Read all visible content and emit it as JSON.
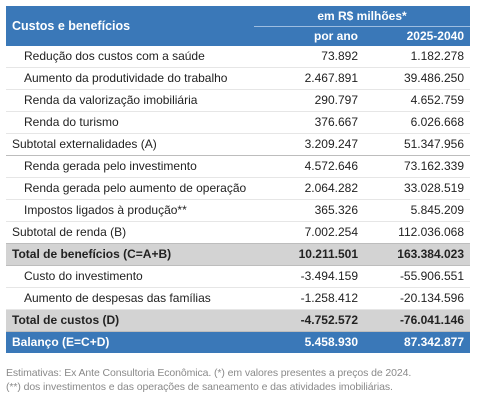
{
  "header": {
    "label": "Custos e benefícios",
    "group": "em R$ milhões*",
    "col1": "por ano",
    "col2": "2025-2040"
  },
  "rows": [
    {
      "type": "item",
      "label": "Redução dos custos com a saúde",
      "a": "73.892",
      "b": "1.182.278"
    },
    {
      "type": "item",
      "label": "Aumento da produtividade do trabalho",
      "a": "2.467.891",
      "b": "39.486.250"
    },
    {
      "type": "item",
      "label": "Renda da valorização imobiliária",
      "a": "290.797",
      "b": "4.652.759"
    },
    {
      "type": "item",
      "label": "Renda do turismo",
      "a": "376.667",
      "b": "6.026.668"
    },
    {
      "type": "subtotal",
      "label": "Subtotal externalidades (A)",
      "a": "3.209.247",
      "b": "51.347.956"
    },
    {
      "type": "item",
      "label": "Renda gerada pelo investimento",
      "a": "4.572.646",
      "b": "73.162.339"
    },
    {
      "type": "item",
      "label": "Renda gerada pelo aumento de operação",
      "a": "2.064.282",
      "b": "33.028.519"
    },
    {
      "type": "item",
      "label": "Impostos ligados à produção**",
      "a": "365.326",
      "b": "5.845.209"
    },
    {
      "type": "subtotal",
      "label": "Subtotal de renda (B)",
      "a": "7.002.254",
      "b": "112.036.068"
    },
    {
      "type": "total",
      "label": "Total de benefícios (C=A+B)",
      "a": "10.211.501",
      "b": "163.384.023"
    },
    {
      "type": "item",
      "label": "Custo do investimento",
      "a": "-3.494.159",
      "b": "-55.906.551"
    },
    {
      "type": "item",
      "label": "Aumento de despesas das famílias",
      "a": "-1.258.412",
      "b": "-20.134.596"
    },
    {
      "type": "total",
      "label": "Total de custos (D)",
      "a": "-4.752.572",
      "b": "-76.041.146"
    },
    {
      "type": "balance",
      "label": "Balanço (E=C+D)",
      "a": "5.458.930",
      "b": "87.342.877"
    }
  ],
  "footnote": {
    "line1": "Estimativas: Ex Ante Consultoria Econômica. (*) em valores presentes a preços de 2024.",
    "line2": "(**) dos investimentos e das operações de saneamento e das atividades imobiliárias."
  },
  "colors": {
    "header_bg": "#3a78b8",
    "total_bg": "#d3d3d3",
    "balance_bg": "#3a78b8"
  }
}
